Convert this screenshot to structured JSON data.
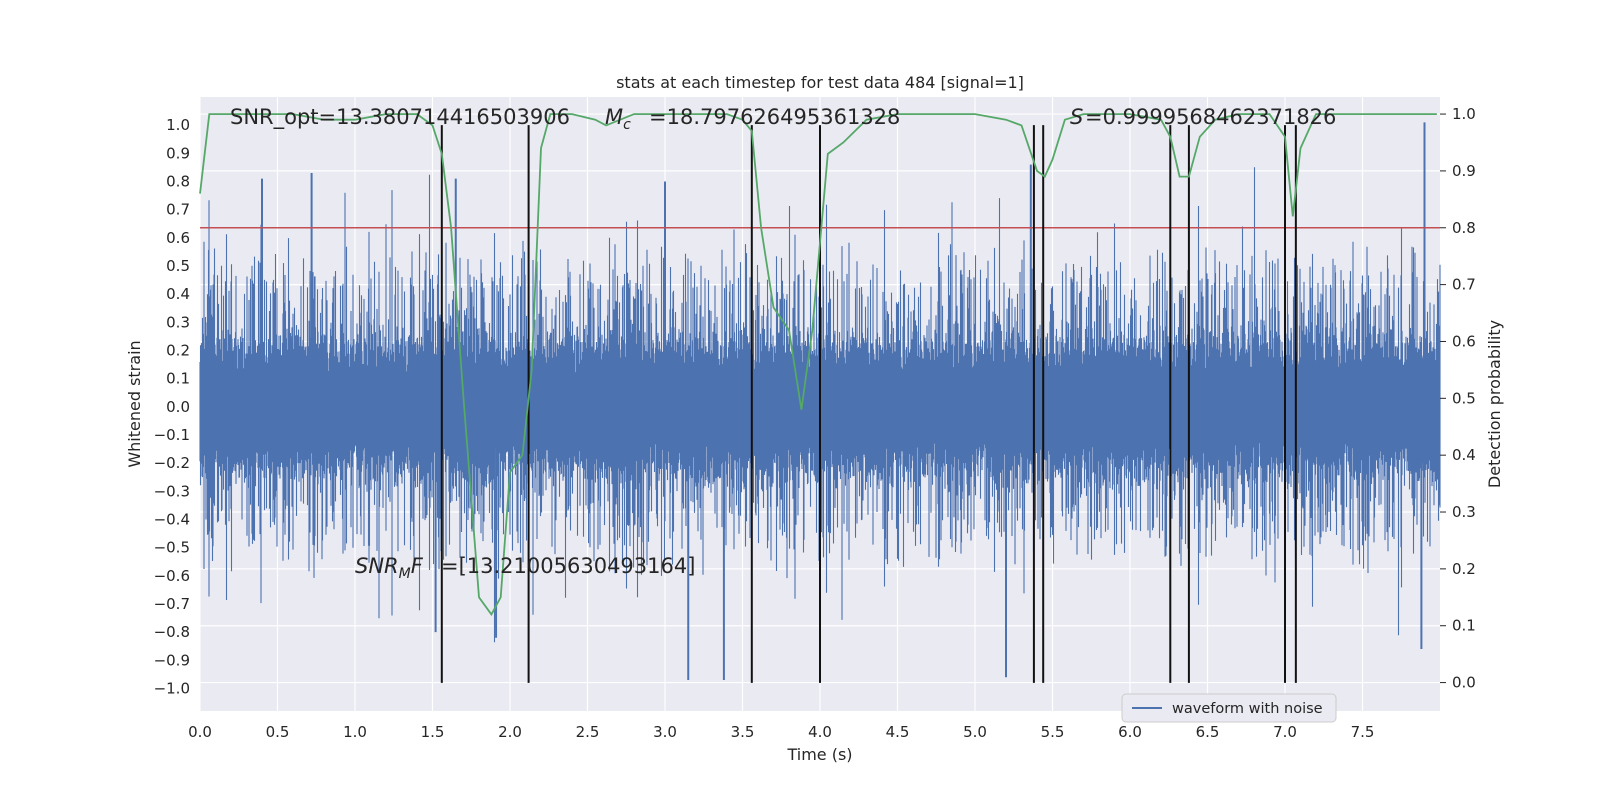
{
  "chart_data": {
    "type": "line",
    "title": "stats at each timestep for test data 484 [signal=1]",
    "xlabel": "Time (s)",
    "ylabel": "Whitened strain",
    "ylabel_right": "Detection probability",
    "xlim": [
      0.0,
      8.0
    ],
    "ylim": [
      -1.08,
      1.1
    ],
    "ylim_right": [
      -0.05,
      1.03
    ],
    "xticks": [
      0.0,
      0.5,
      1.0,
      1.5,
      2.0,
      2.5,
      3.0,
      3.5,
      4.0,
      4.5,
      5.0,
      5.5,
      6.0,
      6.5,
      7.0,
      7.5
    ],
    "xtick_labels": [
      "0.0",
      "0.5",
      "1.0",
      "1.5",
      "2.0",
      "2.5",
      "3.0",
      "3.5",
      "4.0",
      "4.5",
      "5.0",
      "5.5",
      "6.0",
      "6.5",
      "7.0",
      "7.5"
    ],
    "yticks": [
      -1.0,
      -0.9,
      -0.8,
      -0.7,
      -0.6,
      -0.5,
      -0.4,
      -0.3,
      -0.2,
      -0.1,
      0.0,
      0.1,
      0.2,
      0.3,
      0.4,
      0.5,
      0.6,
      0.7,
      0.8,
      0.9,
      1.0
    ],
    "ytick_labels": [
      "−1.0",
      "−0.9",
      "−0.8",
      "−0.7",
      "−0.6",
      "−0.5",
      "−0.4",
      "−0.3",
      "−0.2",
      "−0.1",
      "0.0",
      "0.1",
      "0.2",
      "0.3",
      "0.4",
      "0.5",
      "0.6",
      "0.7",
      "0.8",
      "0.9",
      "1.0"
    ],
    "yticks_right": [
      0.0,
      0.1,
      0.2,
      0.3,
      0.4,
      0.5,
      0.6,
      0.7,
      0.8,
      0.9,
      1.0
    ],
    "ytick_labels_right": [
      "0.0",
      "0.1",
      "0.2",
      "0.3",
      "0.4",
      "0.5",
      "0.6",
      "0.7",
      "0.8",
      "0.9",
      "1.0"
    ],
    "grid": true,
    "series": [
      {
        "name": "waveform with noise",
        "axis": "left",
        "color": "#4c72b0",
        "envelope_typical": 0.22,
        "envelope_burst": 0.42,
        "spikes": [
          {
            "x": 0.4,
            "y": 0.81
          },
          {
            "x": 0.72,
            "y": 0.83
          },
          {
            "x": 1.52,
            "y": -0.8
          },
          {
            "x": 1.65,
            "y": 0.81
          },
          {
            "x": 1.91,
            "y": -0.82
          },
          {
            "x": 3.15,
            "y": -0.97
          },
          {
            "x": 3.38,
            "y": -0.97
          },
          {
            "x": 3.0,
            "y": 0.8
          },
          {
            "x": 5.2,
            "y": -0.96
          },
          {
            "x": 5.36,
            "y": 0.86
          },
          {
            "x": 7.9,
            "y": 1.01
          },
          {
            "x": 7.88,
            "y": -0.86
          }
        ]
      },
      {
        "name": "detection probability",
        "axis": "right",
        "color": "#55a868",
        "x": [
          0.0,
          0.06,
          0.2,
          0.4,
          0.6,
          0.8,
          1.0,
          1.2,
          1.4,
          1.5,
          1.56,
          1.62,
          1.7,
          1.8,
          1.88,
          1.94,
          2.0,
          2.08,
          2.14,
          2.2,
          2.26,
          2.4,
          2.55,
          2.62,
          2.8,
          3.0,
          3.2,
          3.4,
          3.5,
          3.56,
          3.62,
          3.7,
          3.8,
          3.88,
          3.95,
          4.05,
          4.15,
          4.3,
          4.5,
          4.8,
          5.0,
          5.2,
          5.3,
          5.4,
          5.45,
          5.5,
          5.58,
          5.7,
          6.0,
          6.2,
          6.26,
          6.32,
          6.38,
          6.45,
          6.55,
          6.7,
          6.9,
          7.0,
          7.05,
          7.1,
          7.2,
          7.5,
          7.98
        ],
        "y": [
          0.86,
          1.0,
          1.0,
          1.0,
          1.0,
          0.99,
          0.99,
          1.0,
          1.0,
          0.98,
          0.93,
          0.8,
          0.5,
          0.15,
          0.12,
          0.15,
          0.37,
          0.4,
          0.55,
          0.94,
          1.0,
          1.0,
          0.99,
          0.98,
          1.0,
          1.0,
          1.0,
          1.0,
          0.99,
          0.97,
          0.8,
          0.66,
          0.62,
          0.48,
          0.62,
          0.93,
          0.95,
          0.99,
          1.0,
          1.0,
          1.0,
          0.99,
          0.98,
          0.9,
          0.89,
          0.92,
          0.99,
          1.0,
          1.0,
          0.99,
          0.96,
          0.89,
          0.89,
          0.96,
          0.99,
          1.0,
          1.0,
          0.96,
          0.82,
          0.94,
          1.0,
          1.0,
          1.0
        ]
      }
    ],
    "threshold": {
      "value": 0.8,
      "color": "#c44e52"
    },
    "vlines": [
      1.56,
      2.12,
      3.56,
      4.0,
      5.38,
      5.44,
      6.26,
      6.38,
      7.0,
      7.07
    ],
    "vline_ymin": -0.98,
    "vline_ymax": 1.0,
    "annotations": {
      "snr_opt": "SNR_opt=13.380714416503906",
      "mc": "=18.797626495361328",
      "s": "=0.9999568462371826",
      "snr_mf": "=[13.21005630493164]"
    },
    "legend": {
      "label": "waveform with noise",
      "placement": "lower-right"
    }
  }
}
